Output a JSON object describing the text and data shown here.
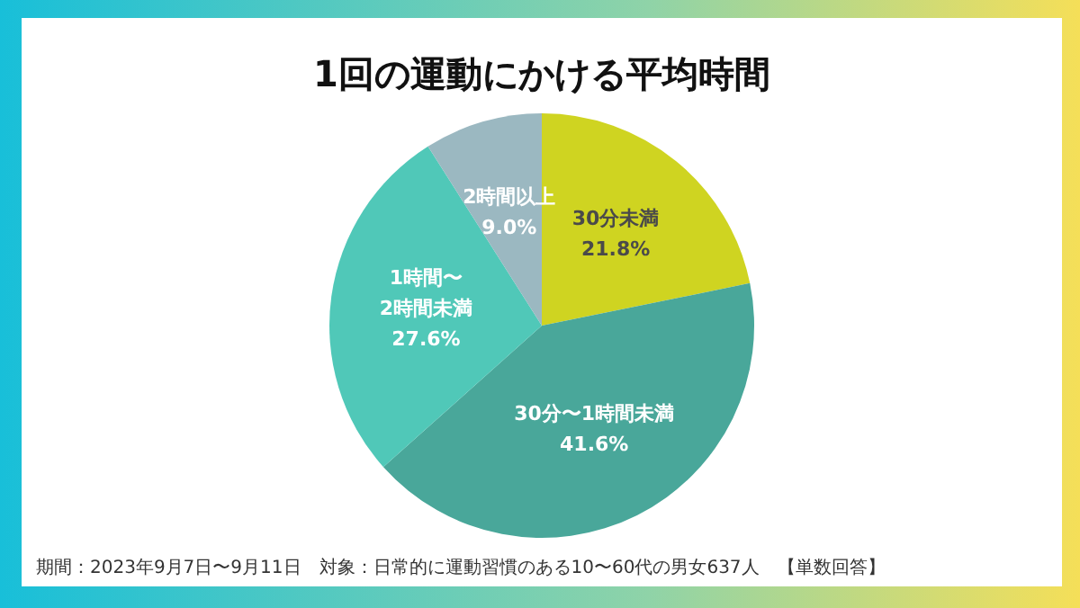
{
  "chart_data": {
    "type": "pie",
    "title": "1回の運動にかける平均時間",
    "categories": [
      "30分未満",
      "30分〜1時間未満",
      "1時間〜\n2時間未満",
      "2時間以上"
    ],
    "values": [
      21.8,
      41.6,
      27.6,
      9.0
    ],
    "colors": [
      "#cfd421",
      "#49a79a",
      "#50c8b8",
      "#9bb8c1"
    ],
    "value_labels": [
      "21.8%",
      "41.6%",
      "27.6%",
      "9.0%"
    ],
    "legend": false,
    "annotations": [
      "期間：2023年9月7日〜9月11日　対象：日常的に運動習慣のある10〜60代の男女637人　【単数回答】"
    ]
  }
}
